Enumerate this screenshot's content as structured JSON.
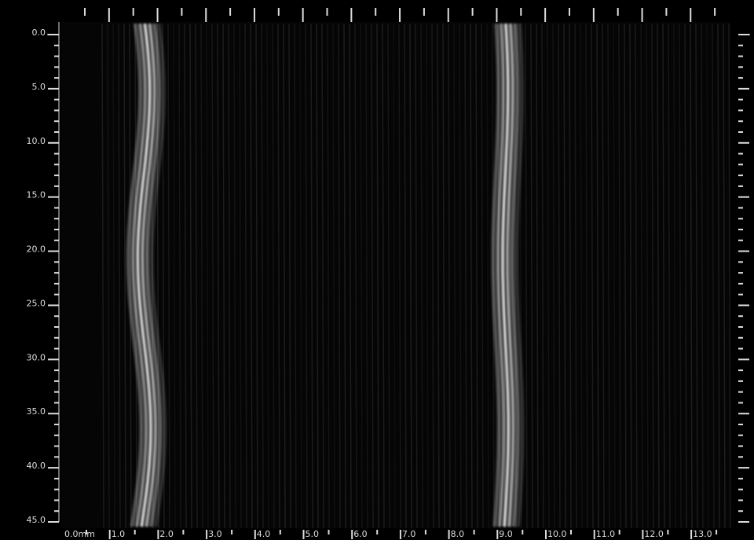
{
  "left_axis": {
    "labels": [
      "0.0",
      "5.0",
      "10.0",
      "15.0",
      "20.0",
      "25.0",
      "30.0",
      "35.0",
      "40.0",
      "45.0"
    ]
  },
  "bottom_axis": {
    "labels": [
      "0.0mm",
      "1.0",
      "2.0",
      "3.0",
      "4.0",
      "5.0",
      "6.0",
      "7.0",
      "8.0",
      "9.0",
      "10.0",
      "11.0",
      "12.0",
      "13.0"
    ]
  }
}
